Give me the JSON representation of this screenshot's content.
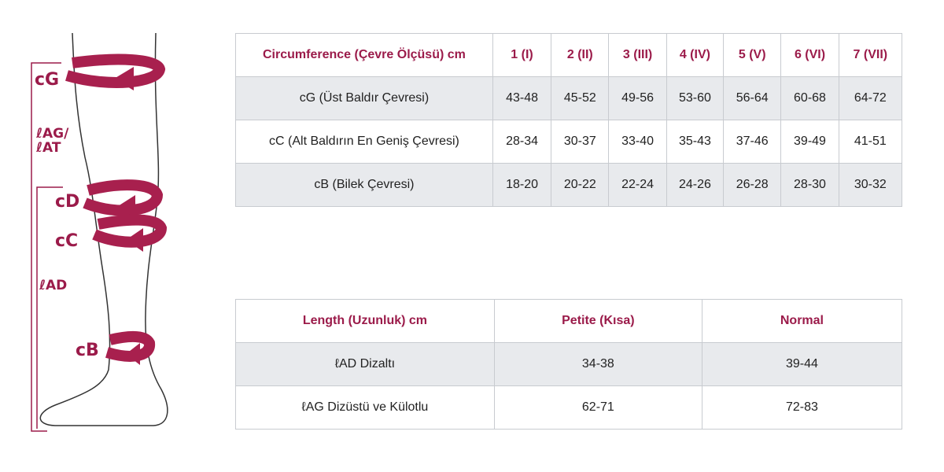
{
  "diagram": {
    "labels": [
      "cG",
      "ℓAG/",
      "ℓAT",
      "cD",
      "cC",
      "ℓAD",
      "cB"
    ]
  },
  "circumference_table": {
    "header": [
      "Circumference (Çevre Ölçüsü) cm",
      "1 (I)",
      "2 (II)",
      "3 (III)",
      "4 (IV)",
      "5 (V)",
      "6 (VI)",
      "7 (VII)"
    ],
    "rows": [
      [
        "cG (Üst Baldır Çevresi)",
        "43-48",
        "45-52",
        "49-56",
        "53-60",
        "56-64",
        "60-68",
        "64-72"
      ],
      [
        "cC (Alt Baldırın En Geniş Çevresi)",
        "28-34",
        "30-37",
        "33-40",
        "35-43",
        "37-46",
        "39-49",
        "41-51"
      ],
      [
        "cB (Bilek Çevresi)",
        "18-20",
        "20-22",
        "22-24",
        "24-26",
        "26-28",
        "28-30",
        "30-32"
      ]
    ]
  },
  "length_table": {
    "header": [
      "Length (Uzunluk) cm",
      "Petite (Kısa)",
      "Normal"
    ],
    "rows": [
      [
        "ℓAD Dizaltı",
        "34-38",
        "39-44"
      ],
      [
        "ℓAG Dizüstü ve Külotlu",
        "62-71",
        "72-83"
      ]
    ]
  }
}
